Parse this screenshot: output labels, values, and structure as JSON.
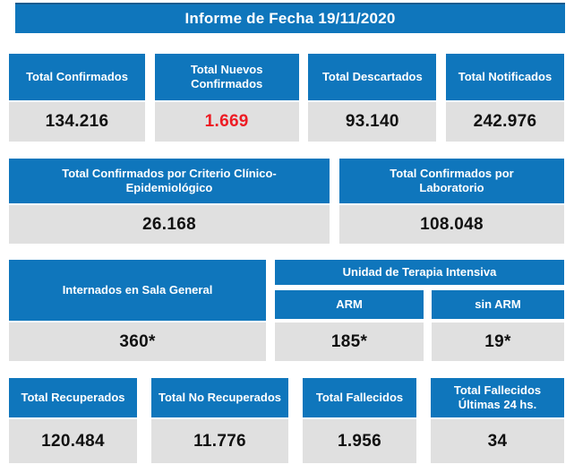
{
  "title": "Informe de Fecha 19/11/2020",
  "colors": {
    "accent": "#0F76BC",
    "value_bg": "#E0E0E0",
    "alert": "#ED1C24",
    "ink": "#111111"
  },
  "row1": [
    {
      "label": "Total Confirmados",
      "value": "134.216"
    },
    {
      "label": "Total Nuevos Confirmados",
      "value": "1.669",
      "highlight": true
    },
    {
      "label": "Total Descartados",
      "value": "93.140"
    },
    {
      "label": "Total Notificados",
      "value": "242.976"
    }
  ],
  "row2": [
    {
      "label": "Total Confirmados por Criterio Clínico-Epidemiológico",
      "value": "26.168"
    },
    {
      "label": "Total Confirmados por Laboratorio",
      "value": "108.048"
    }
  ],
  "row3": {
    "general_ward": {
      "label": "Internados en Sala General",
      "value": "360*"
    },
    "icu": {
      "label": "Unidad de Terapia Intensiva",
      "columns": [
        {
          "label": "ARM",
          "value": "185*"
        },
        {
          "label": "sin ARM",
          "value": "19*"
        }
      ]
    }
  },
  "row4": [
    {
      "label": "Total Recuperados",
      "value": "120.484"
    },
    {
      "label": "Total No Recuperados",
      "value": "11.776"
    },
    {
      "label": "Total Fallecidos",
      "value": "1.956"
    },
    {
      "label": "Total Fallecidos Últimas 24 hs.",
      "value": "34"
    }
  ]
}
